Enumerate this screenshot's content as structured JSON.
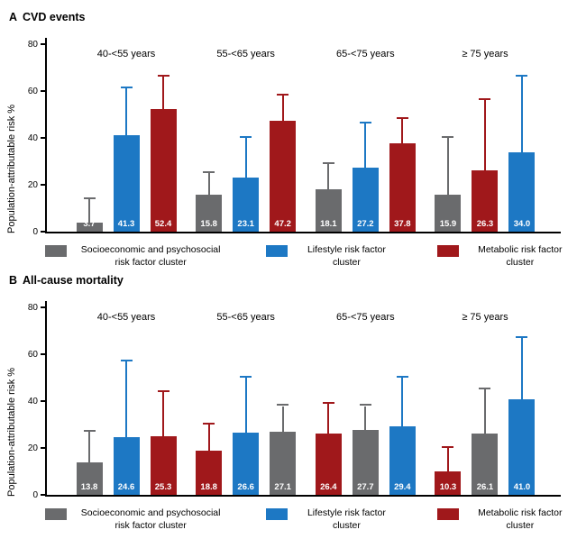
{
  "colors": {
    "gray": "#6a6b6d",
    "blue": "#1d78c4",
    "red": "#a0181b"
  },
  "legend": [
    {
      "series": "gray",
      "label": "Socioeconomic and psychosocial risk factor cluster"
    },
    {
      "series": "blue",
      "label": "Lifestyle risk factor cluster"
    },
    {
      "series": "red",
      "label": "Metabolic risk factor cluster"
    }
  ],
  "chart_data": [
    {
      "type": "bar",
      "panel_letter": "A",
      "title": "CVD events",
      "ylabel": "Population-attributable risk %",
      "ylim": [
        0,
        80
      ],
      "yticks": [
        0,
        20,
        40,
        60,
        80
      ],
      "legend_position": "bottom",
      "categories": [
        "40-<55 years",
        "55-<65 years",
        "65-<75 years",
        "≥ 75 years"
      ],
      "groups": [
        {
          "label": "40-<55 years",
          "bars": [
            {
              "series": "gray",
              "value": 3.7,
              "ci_high": 14
            },
            {
              "series": "blue",
              "value": 41.3,
              "ci_high": 61
            },
            {
              "series": "red",
              "value": 52.4,
              "ci_high": 66
            }
          ]
        },
        {
          "label": "55-<65 years",
          "bars": [
            {
              "series": "gray",
              "value": 15.8,
              "ci_high": 25
            },
            {
              "series": "blue",
              "value": 23.1,
              "ci_high": 40
            },
            {
              "series": "red",
              "value": 47.2,
              "ci_high": 58
            }
          ]
        },
        {
          "label": "65-<75 years",
          "bars": [
            {
              "series": "gray",
              "value": 18.1,
              "ci_high": 29
            },
            {
              "series": "blue",
              "value": 27.2,
              "ci_high": 46
            },
            {
              "series": "red",
              "value": 37.8,
              "ci_high": 48
            }
          ]
        },
        {
          "label": "≥ 75 years",
          "bars": [
            {
              "series": "gray",
              "value": 15.9,
              "ci_high": 40
            },
            {
              "series": "red",
              "value": 26.3,
              "ci_high": 56
            },
            {
              "series": "blue",
              "value": 34.0,
              "ci_high": 66
            }
          ]
        }
      ]
    },
    {
      "type": "bar",
      "panel_letter": "B",
      "title": "All-cause mortality",
      "ylabel": "Population-attributable risk %",
      "ylim": [
        0,
        80
      ],
      "yticks": [
        0,
        20,
        40,
        60,
        80
      ],
      "legend_position": "bottom",
      "categories": [
        "40-<55 years",
        "55-<65 years",
        "65-<75 years",
        "≥ 75 years"
      ],
      "groups": [
        {
          "label": "40-<55 years",
          "bars": [
            {
              "series": "gray",
              "value": 13.8,
              "ci_high": 27
            },
            {
              "series": "blue",
              "value": 24.6,
              "ci_high": 57
            },
            {
              "series": "red",
              "value": 25.3,
              "ci_high": 44
            }
          ]
        },
        {
          "label": "55-<65 years",
          "bars": [
            {
              "series": "red",
              "value": 18.8,
              "ci_high": 30
            },
            {
              "series": "blue",
              "value": 26.6,
              "ci_high": 50
            },
            {
              "series": "gray",
              "value": 27.1,
              "ci_high": 38
            }
          ]
        },
        {
          "label": "65-<75 years",
          "bars": [
            {
              "series": "red",
              "value": 26.4,
              "ci_high": 39
            },
            {
              "series": "gray",
              "value": 27.7,
              "ci_high": 38
            },
            {
              "series": "blue",
              "value": 29.4,
              "ci_high": 50
            }
          ]
        },
        {
          "label": "≥ 75 years",
          "bars": [
            {
              "series": "red",
              "value": 10.3,
              "ci_high": 20
            },
            {
              "series": "gray",
              "value": 26.1,
              "ci_high": 45
            },
            {
              "series": "blue",
              "value": 41.0,
              "ci_high": 67
            }
          ]
        }
      ]
    }
  ]
}
